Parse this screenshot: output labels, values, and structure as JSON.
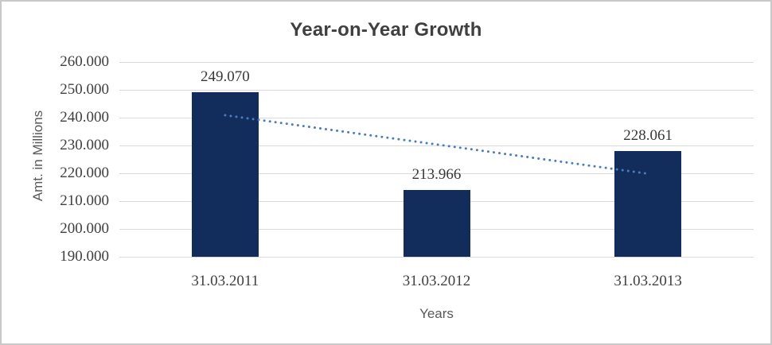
{
  "chart_data": {
    "type": "bar",
    "title": "Year-on-Year Growth",
    "xlabel": "Years",
    "ylabel": "Amt. in Millions",
    "categories": [
      "31.03.2011",
      "31.03.2012",
      "31.03.2013"
    ],
    "values": [
      249070,
      213966,
      228061
    ],
    "data_labels": [
      "249.070",
      "213.966",
      "228.061"
    ],
    "ylim": [
      190000,
      260000
    ],
    "ytick_step": 10000,
    "ytick_labels": [
      "190.000",
      "200.000",
      "210.000",
      "220.000",
      "230.000",
      "240.000",
      "250.000",
      "260.000"
    ],
    "grid": "horizontal",
    "legend_position": "none",
    "trendline": {
      "type": "linear",
      "style": "dotted",
      "start_value": 240870,
      "end_value": 219862
    }
  },
  "colors": {
    "bar_fill": "#122c5c",
    "trendline": "#4a7ebb",
    "gridline": "#d9d9d9",
    "title_text": "#404040",
    "tick_text": "#3f3f3f",
    "axis_title_text": "#595959",
    "frame_border": "#c9c9c9",
    "background": "#ffffff"
  }
}
